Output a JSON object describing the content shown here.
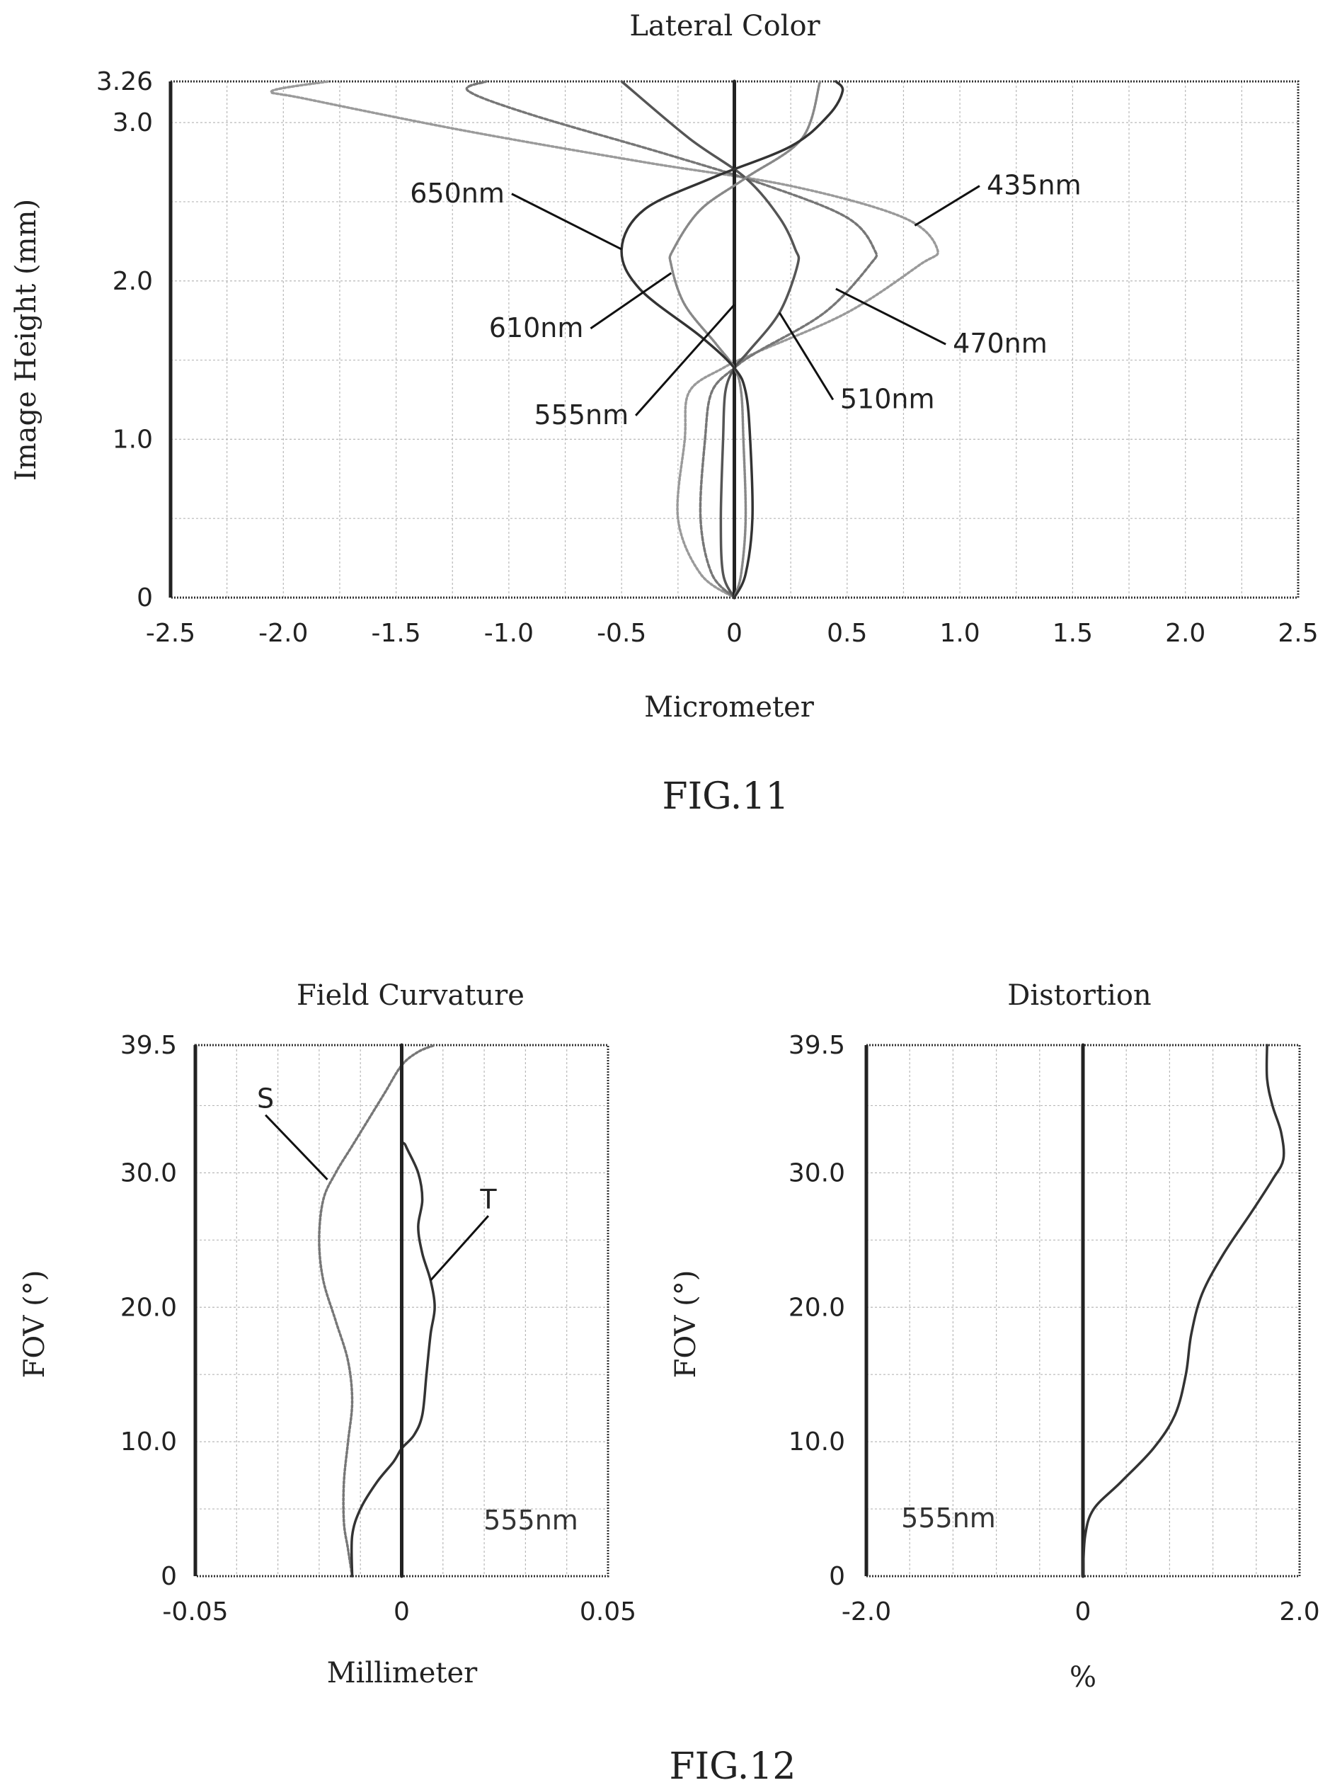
{
  "chart_data": [
    {
      "id": "lateral",
      "type": "line",
      "title": "Lateral Color",
      "xlabel": "Micrometer",
      "ylabel": "Image Height (mm)",
      "xlim": [
        -2.5,
        2.5
      ],
      "ylim": [
        0,
        3.26
      ],
      "xticks": [
        "-2.5",
        "-2.0",
        "-1.5",
        "-1.0",
        "-0.5",
        "0",
        "0.5",
        "1.0",
        "1.5",
        "2.0",
        "2.5"
      ],
      "xtick_values": [
        -2.5,
        -2.0,
        -1.5,
        -1.0,
        -0.5,
        0,
        0.5,
        1.0,
        1.5,
        2.0,
        2.5
      ],
      "yticks": [
        "0",
        "1.0",
        "2.0",
        "3.0",
        "3.26"
      ],
      "ytick_values": [
        0,
        1.0,
        2.0,
        3.0,
        3.26
      ],
      "x_grid_step": 0.25,
      "y_grid_step": 0.5,
      "grid": true,
      "caption": "FIG.11",
      "series": [
        {
          "name": "435nm",
          "color": "#9a9a9a",
          "dash": "3 3",
          "points": [
            [
              0,
              0
            ],
            [
              -0.15,
              0.15
            ],
            [
              -0.25,
              0.5
            ],
            [
              -0.22,
              1.0
            ],
            [
              -0.2,
              1.3
            ],
            [
              -0.05,
              1.45
            ],
            [
              0.1,
              1.55
            ],
            [
              0.5,
              1.8
            ],
            [
              0.82,
              2.1
            ],
            [
              0.9,
              2.2
            ],
            [
              0.75,
              2.4
            ],
            [
              0.25,
              2.6
            ],
            [
              -0.4,
              2.75
            ],
            [
              -1.2,
              2.95
            ],
            [
              -1.9,
              3.15
            ],
            [
              -2.05,
              3.2
            ],
            [
              -1.8,
              3.26
            ]
          ]
        },
        {
          "name": "470nm",
          "color": "#777777",
          "dash": "5 3",
          "points": [
            [
              0,
              0
            ],
            [
              -0.1,
              0.15
            ],
            [
              -0.15,
              0.5
            ],
            [
              -0.13,
              1.0
            ],
            [
              -0.1,
              1.3
            ],
            [
              0,
              1.45
            ],
            [
              0.1,
              1.55
            ],
            [
              0.4,
              1.8
            ],
            [
              0.6,
              2.1
            ],
            [
              0.62,
              2.2
            ],
            [
              0.5,
              2.4
            ],
            [
              0.15,
              2.6
            ],
            [
              -0.3,
              2.8
            ],
            [
              -0.9,
              3.05
            ],
            [
              -1.18,
              3.2
            ],
            [
              -1.1,
              3.26
            ]
          ]
        },
        {
          "name": "510nm",
          "color": "#555555",
          "dash": "",
          "points": [
            [
              0,
              0
            ],
            [
              -0.05,
              0.15
            ],
            [
              -0.06,
              0.5
            ],
            [
              -0.05,
              1.0
            ],
            [
              -0.04,
              1.3
            ],
            [
              0,
              1.45
            ],
            [
              0.06,
              1.55
            ],
            [
              0.2,
              1.8
            ],
            [
              0.28,
              2.1
            ],
            [
              0.27,
              2.2
            ],
            [
              0.2,
              2.4
            ],
            [
              0.05,
              2.65
            ],
            [
              -0.2,
              2.9
            ],
            [
              -0.5,
              3.26
            ]
          ]
        },
        {
          "name": "555nm",
          "color": "#222222",
          "dash": "",
          "points": [
            [
              0,
              0
            ],
            [
              0,
              1.0
            ],
            [
              0,
              2.0
            ],
            [
              0,
              3.26
            ]
          ]
        },
        {
          "name": "610nm",
          "color": "#888888",
          "dash": "3 2",
          "points": [
            [
              0,
              0
            ],
            [
              0.03,
              0.15
            ],
            [
              0.05,
              0.5
            ],
            [
              0.04,
              1.0
            ],
            [
              0.03,
              1.3
            ],
            [
              0,
              1.45
            ],
            [
              -0.08,
              1.6
            ],
            [
              -0.22,
              1.85
            ],
            [
              -0.28,
              2.1
            ],
            [
              -0.27,
              2.2
            ],
            [
              -0.15,
              2.45
            ],
            [
              0.05,
              2.65
            ],
            [
              0.3,
              2.9
            ],
            [
              0.38,
              3.26
            ]
          ]
        },
        {
          "name": "650nm",
          "color": "#333333",
          "dash": "",
          "points": [
            [
              0,
              0
            ],
            [
              0.05,
              0.15
            ],
            [
              0.08,
              0.5
            ],
            [
              0.07,
              1.0
            ],
            [
              0.05,
              1.3
            ],
            [
              0,
              1.45
            ],
            [
              -0.15,
              1.65
            ],
            [
              -0.42,
              1.95
            ],
            [
              -0.5,
              2.2
            ],
            [
              -0.4,
              2.45
            ],
            [
              -0.1,
              2.65
            ],
            [
              0.25,
              2.85
            ],
            [
              0.42,
              3.05
            ],
            [
              0.48,
              3.2
            ],
            [
              0.45,
              3.26
            ]
          ]
        }
      ],
      "annotations": [
        {
          "text": "650nm",
          "label_at": [
            -1.0,
            2.55
          ],
          "point_at": [
            -0.5,
            2.2
          ],
          "anchor": "end"
        },
        {
          "text": "610nm",
          "label_at": [
            -0.65,
            1.7
          ],
          "point_at": [
            -0.28,
            2.05
          ],
          "anchor": "end"
        },
        {
          "text": "555nm",
          "label_at": [
            -0.45,
            1.15
          ],
          "point_at": [
            0,
            1.85
          ],
          "anchor": "end"
        },
        {
          "text": "510nm",
          "label_at": [
            0.45,
            1.25
          ],
          "point_at": [
            0.2,
            1.8
          ],
          "anchor": "start"
        },
        {
          "text": "470nm",
          "label_at": [
            0.95,
            1.6
          ],
          "point_at": [
            0.45,
            1.95
          ],
          "anchor": "start"
        },
        {
          "text": "435nm",
          "label_at": [
            1.1,
            2.6
          ],
          "point_at": [
            0.8,
            2.35
          ],
          "anchor": "start"
        }
      ]
    },
    {
      "id": "field",
      "type": "line",
      "title": "Field Curvature",
      "xlabel": "Millimeter",
      "ylabel": "FOV (°)",
      "xlim": [
        -0.05,
        0.05
      ],
      "ylim": [
        0,
        39.5
      ],
      "xticks": [
        "-0.05",
        "0",
        "0.05"
      ],
      "xtick_values": [
        -0.05,
        0,
        0.05
      ],
      "yticks": [
        "0",
        "10.0",
        "20.0",
        "30.0",
        "39.5"
      ],
      "ytick_values": [
        0,
        10.0,
        20.0,
        30.0,
        39.5
      ],
      "x_grid_step": 0.01,
      "y_grid_step": 5,
      "grid": true,
      "inner_label": "555nm",
      "series": [
        {
          "name": "S",
          "color": "#777777",
          "dash": "3 3",
          "points": [
            [
              -0.012,
              0
            ],
            [
              -0.013,
              2
            ],
            [
              -0.014,
              4
            ],
            [
              -0.014,
              7
            ],
            [
              -0.013,
              10
            ],
            [
              -0.012,
              13
            ],
            [
              -0.013,
              16
            ],
            [
              -0.016,
              19
            ],
            [
              -0.019,
              22
            ],
            [
              -0.02,
              25
            ],
            [
              -0.019,
              28
            ],
            [
              -0.016,
              30
            ],
            [
              -0.012,
              32
            ],
            [
              -0.008,
              34
            ],
            [
              -0.004,
              36
            ],
            [
              0,
              38
            ],
            [
              0.004,
              39
            ],
            [
              0.008,
              39.5
            ]
          ]
        },
        {
          "name": "T",
          "color": "#333333",
          "dash": "",
          "points": [
            [
              -0.012,
              0
            ],
            [
              -0.012,
              3
            ],
            [
              -0.01,
              5
            ],
            [
              -0.006,
              7
            ],
            [
              -0.002,
              8.5
            ],
            [
              0,
              9.5
            ],
            [
              0.003,
              10.5
            ],
            [
              0.005,
              12
            ],
            [
              0.006,
              15
            ],
            [
              0.007,
              18
            ],
            [
              0.008,
              20
            ],
            [
              0.007,
              22
            ],
            [
              0.005,
              24
            ],
            [
              0.004,
              26
            ],
            [
              0.005,
              28
            ],
            [
              0.004,
              30
            ],
            [
              0.001,
              32
            ],
            [
              0,
              33
            ],
            [
              0,
              39.5
            ]
          ]
        },
        {
          "name": "",
          "color": "#222222",
          "dash": "",
          "points": [
            [
              0,
              0
            ],
            [
              0,
              39.5
            ]
          ]
        }
      ],
      "annotations": [
        {
          "text": "S",
          "label_at": [
            -0.033,
            34.3
          ],
          "point_at": [
            -0.018,
            29.5
          ],
          "anchor": "middle"
        },
        {
          "text": "T",
          "label_at": [
            0.021,
            26.8
          ],
          "point_at": [
            0.007,
            22
          ],
          "anchor": "middle"
        }
      ]
    },
    {
      "id": "distortion",
      "type": "line",
      "title": "Distortion",
      "xlabel": "%",
      "ylabel": "FOV (°)",
      "xlim": [
        -2.0,
        2.0
      ],
      "ylim": [
        0,
        39.5
      ],
      "xticks": [
        "-2.0",
        "0",
        "2.0"
      ],
      "xtick_values": [
        -2.0,
        0,
        2.0
      ],
      "yticks": [
        "0",
        "10.0",
        "20.0",
        "30.0",
        "39.5"
      ],
      "ytick_values": [
        0,
        10.0,
        20.0,
        30.0,
        39.5
      ],
      "x_grid_step": 0.4,
      "y_grid_step": 5,
      "grid": true,
      "inner_label": "555nm",
      "series": [
        {
          "name": "",
          "color": "#222222",
          "dash": "",
          "points": [
            [
              0,
              0
            ],
            [
              0,
              39.5
            ]
          ]
        },
        {
          "name": "",
          "color": "#333333",
          "dash": "",
          "points": [
            [
              0,
              0
            ],
            [
              0.02,
              3
            ],
            [
              0.1,
              5
            ],
            [
              0.35,
              7
            ],
            [
              0.65,
              9.5
            ],
            [
              0.85,
              12
            ],
            [
              0.95,
              15
            ],
            [
              1.0,
              18
            ],
            [
              1.1,
              21
            ],
            [
              1.3,
              24
            ],
            [
              1.55,
              27
            ],
            [
              1.75,
              29.5
            ],
            [
              1.85,
              31
            ],
            [
              1.83,
              33
            ],
            [
              1.75,
              35
            ],
            [
              1.7,
              37
            ],
            [
              1.7,
              39.5
            ]
          ]
        }
      ]
    }
  ],
  "fig12_caption": "FIG.12"
}
